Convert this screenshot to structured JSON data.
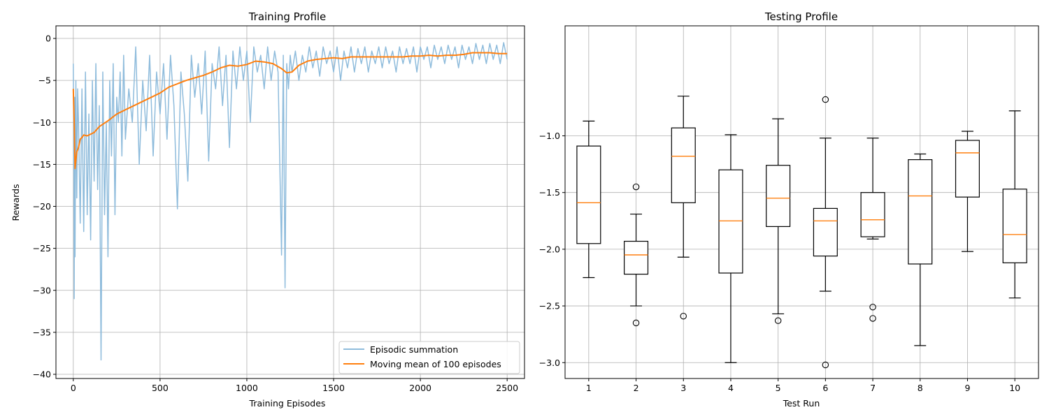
{
  "chart_data": [
    {
      "type": "line",
      "title": "Training Profile",
      "xlabel": "Training Episodes",
      "ylabel": "Rewards",
      "xlim": [
        -100,
        2600
      ],
      "ylim": [
        -40.5,
        1.5
      ],
      "xticks": [
        0,
        500,
        1000,
        1500,
        2000,
        2500
      ],
      "xtick_labels": [
        "0",
        "500",
        "1000",
        "1500",
        "2000",
        "2500"
      ],
      "yticks": [
        0,
        -5,
        -10,
        -15,
        -20,
        -25,
        -30,
        -35,
        -40
      ],
      "ytick_labels": [
        "0",
        "−5",
        "−10",
        "−15",
        "−20",
        "−25",
        "−30",
        "−35",
        "−40"
      ],
      "grid": true,
      "legend_position": "bottom-right",
      "series": [
        {
          "name": "Episodic summation",
          "color": "#8fbcdc",
          "x": [
            0,
            3,
            5,
            8,
            10,
            15,
            20,
            25,
            30,
            40,
            50,
            60,
            70,
            80,
            90,
            100,
            110,
            120,
            130,
            140,
            150,
            160,
            170,
            180,
            190,
            200,
            210,
            220,
            230,
            240,
            250,
            260,
            270,
            280,
            290,
            300,
            320,
            340,
            360,
            380,
            400,
            420,
            440,
            460,
            480,
            500,
            520,
            540,
            560,
            580,
            600,
            620,
            640,
            660,
            680,
            700,
            720,
            740,
            760,
            780,
            800,
            820,
            840,
            860,
            880,
            900,
            920,
            940,
            960,
            980,
            1000,
            1020,
            1040,
            1060,
            1080,
            1100,
            1120,
            1140,
            1160,
            1180,
            1200,
            1210,
            1220,
            1230,
            1240,
            1250,
            1260,
            1280,
            1300,
            1320,
            1340,
            1360,
            1380,
            1400,
            1420,
            1440,
            1460,
            1480,
            1500,
            1520,
            1540,
            1560,
            1580,
            1600,
            1620,
            1640,
            1660,
            1680,
            1700,
            1720,
            1740,
            1760,
            1780,
            1800,
            1820,
            1840,
            1860,
            1880,
            1900,
            1920,
            1940,
            1960,
            1980,
            2000,
            2020,
            2040,
            2060,
            2080,
            2100,
            2120,
            2140,
            2160,
            2180,
            2200,
            2220,
            2240,
            2260,
            2280,
            2300,
            2320,
            2340,
            2360,
            2380,
            2400,
            2420,
            2440,
            2460,
            2480,
            2500
          ],
          "values": [
            -3.0,
            -15.0,
            -31.0,
            -7.0,
            -26.0,
            -5.0,
            -19.0,
            -6.0,
            -10.0,
            -22.0,
            -6.0,
            -23.0,
            -4.0,
            -21.0,
            -9.0,
            -24.0,
            -5.0,
            -17.0,
            -3.0,
            -18.0,
            -8.0,
            -38.3,
            -4.0,
            -21.0,
            -10.0,
            -26.0,
            -5.0,
            -14.0,
            -3.0,
            -21.0,
            -7.0,
            -10.0,
            -4.0,
            -14.0,
            -2.0,
            -12.0,
            -6.0,
            -10.0,
            -1.0,
            -15.0,
            -5.0,
            -11.0,
            -2.0,
            -14.0,
            -4.0,
            -9.0,
            -3.0,
            -12.0,
            -2.0,
            -8.0,
            -20.3,
            -4.0,
            -9.0,
            -17.0,
            -2.0,
            -7.0,
            -3.0,
            -9.0,
            -1.5,
            -14.6,
            -3.0,
            -6.0,
            -1.0,
            -8.0,
            -2.0,
            -13.0,
            -1.5,
            -6.0,
            -1.0,
            -5.0,
            -1.5,
            -10.0,
            -1.0,
            -4.0,
            -2.0,
            -6.0,
            -1.0,
            -5.0,
            -1.5,
            -4.0,
            -25.8,
            -2.0,
            -29.7,
            -3.0,
            -6.0,
            -2.0,
            -4.0,
            -1.5,
            -5.0,
            -2.0,
            -4.0,
            -1.0,
            -3.5,
            -1.5,
            -4.5,
            -1.0,
            -3.0,
            -1.5,
            -4.0,
            -1.0,
            -5.0,
            -1.5,
            -3.5,
            -1.0,
            -4.0,
            -1.2,
            -3.0,
            -1.0,
            -4.0,
            -1.5,
            -3.0,
            -1.0,
            -3.5,
            -1.0,
            -3.0,
            -1.5,
            -4.0,
            -1.0,
            -3.0,
            -1.2,
            -3.0,
            -1.0,
            -4.0,
            -1.0,
            -2.5,
            -1.0,
            -3.5,
            -0.8,
            -2.5,
            -1.0,
            -3.0,
            -0.8,
            -2.5,
            -1.0,
            -3.5,
            -0.8,
            -2.5,
            -1.0,
            -3.0,
            -0.6,
            -2.5,
            -0.8,
            -3.0,
            -0.6,
            -2.5,
            -0.8,
            -3.0,
            -0.5,
            -2.5
          ]
        },
        {
          "name": "Moving mean of 100 episodes",
          "color": "#ff7f0e",
          "x": [
            0,
            5,
            10,
            15,
            20,
            30,
            40,
            50,
            60,
            80,
            100,
            120,
            150,
            200,
            250,
            300,
            350,
            400,
            450,
            500,
            550,
            600,
            650,
            700,
            750,
            800,
            850,
            900,
            950,
            1000,
            1050,
            1100,
            1150,
            1200,
            1230,
            1260,
            1300,
            1350,
            1400,
            1450,
            1500,
            1550,
            1600,
            1650,
            1700,
            1750,
            1800,
            1850,
            1900,
            1950,
            2000,
            2050,
            2100,
            2150,
            2200,
            2250,
            2300,
            2350,
            2400,
            2450,
            2500
          ],
          "values": [
            -6.0,
            -10.0,
            -15.5,
            -14.5,
            -13.5,
            -13.0,
            -12.0,
            -11.8,
            -11.5,
            -11.6,
            -11.4,
            -11.2,
            -10.5,
            -9.8,
            -9.0,
            -8.5,
            -8.0,
            -7.5,
            -7.0,
            -6.5,
            -5.8,
            -5.4,
            -5.0,
            -4.7,
            -4.4,
            -4.0,
            -3.5,
            -3.2,
            -3.3,
            -3.1,
            -2.7,
            -2.8,
            -3.0,
            -3.6,
            -4.1,
            -4.0,
            -3.2,
            -2.7,
            -2.5,
            -2.4,
            -2.3,
            -2.4,
            -2.2,
            -2.2,
            -2.2,
            -2.2,
            -2.2,
            -2.2,
            -2.2,
            -2.1,
            -2.1,
            -2.0,
            -2.1,
            -2.0,
            -2.0,
            -1.9,
            -1.7,
            -1.7,
            -1.7,
            -1.8,
            -1.8
          ]
        }
      ]
    },
    {
      "type": "box",
      "title": "Testing Profile",
      "xlabel": "Test Run",
      "ylabel": "",
      "ylim": [
        -3.14,
        -0.03
      ],
      "yticks": [
        -1.0,
        -1.5,
        -2.0,
        -2.5,
        -3.0
      ],
      "ytick_labels": [
        "−1.0",
        "−1.5",
        "−2.0",
        "−2.5",
        "−3.0"
      ],
      "categories": [
        "1",
        "2",
        "3",
        "4",
        "5",
        "6",
        "7",
        "8",
        "9",
        "10"
      ],
      "grid": true,
      "median_color": "#ff7f0e",
      "boxes": [
        {
          "whisker_high": -0.87,
          "q3": -1.09,
          "median": -1.59,
          "q1": -1.95,
          "whisker_low": -2.25,
          "outliers": []
        },
        {
          "whisker_high": -1.69,
          "q3": -1.93,
          "median": -2.05,
          "q1": -2.22,
          "whisker_low": -2.5,
          "outliers": [
            -1.45,
            -2.65
          ]
        },
        {
          "whisker_high": -0.65,
          "q3": -0.93,
          "median": -1.18,
          "q1": -1.59,
          "whisker_low": -2.07,
          "outliers": [
            -2.59
          ]
        },
        {
          "whisker_high": -0.99,
          "q3": -1.3,
          "median": -1.75,
          "q1": -2.21,
          "whisker_low": -3.0,
          "outliers": []
        },
        {
          "whisker_high": -0.85,
          "q3": -1.26,
          "median": -1.55,
          "q1": -1.8,
          "whisker_low": -2.57,
          "outliers": [
            -2.63
          ]
        },
        {
          "whisker_high": -1.02,
          "q3": -1.64,
          "median": -1.75,
          "q1": -2.06,
          "whisker_low": -2.37,
          "outliers": [
            -0.68,
            -3.02
          ]
        },
        {
          "whisker_high": -1.02,
          "q3": -1.5,
          "median": -1.74,
          "q1": -1.89,
          "whisker_low": -1.91,
          "outliers": [
            -2.51,
            -2.61
          ]
        },
        {
          "whisker_high": -1.16,
          "q3": -1.21,
          "median": -1.53,
          "q1": -2.13,
          "whisker_low": -2.85,
          "outliers": []
        },
        {
          "whisker_high": -0.96,
          "q3": -1.04,
          "median": -1.15,
          "q1": -1.54,
          "whisker_low": -2.02,
          "outliers": []
        },
        {
          "whisker_high": -0.78,
          "q3": -1.47,
          "median": -1.87,
          "q1": -2.12,
          "whisker_low": -2.43,
          "outliers": []
        }
      ]
    }
  ]
}
